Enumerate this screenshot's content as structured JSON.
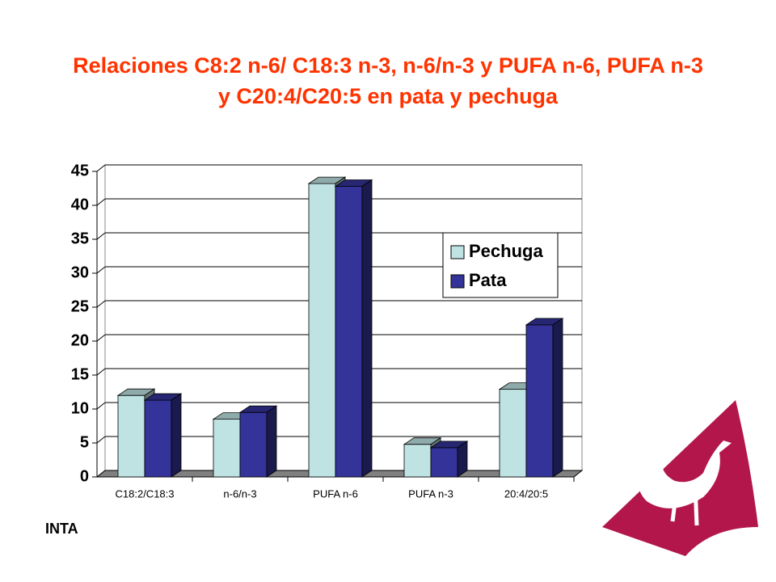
{
  "chart_data": {
    "type": "bar3d",
    "title": "Relaciones C8:2 n-6/ C18:3 n-3, n-6/n-3 y PUFA n-6, PUFA n-3 y C20:4/C20:5 en pata y pechuga",
    "categories": [
      "C18:2/C18:3",
      "n-6/n-3",
      "PUFA n-6",
      "PUFA n-3",
      "20:4/20:5"
    ],
    "series": [
      {
        "name": "Pechuga",
        "color": "#bfe3e3",
        "values": [
          12,
          8.5,
          43.2,
          4.8,
          12.9
        ]
      },
      {
        "name": "Pata",
        "color": "#333399",
        "values": [
          11.3,
          9.5,
          42.8,
          4.3,
          22.4
        ]
      }
    ],
    "ylim": [
      0,
      45
    ],
    "yticks": [
      0,
      5,
      10,
      15,
      20,
      25,
      30,
      35,
      40,
      45
    ],
    "grid": true,
    "legend": "right"
  },
  "footer": "INTA"
}
